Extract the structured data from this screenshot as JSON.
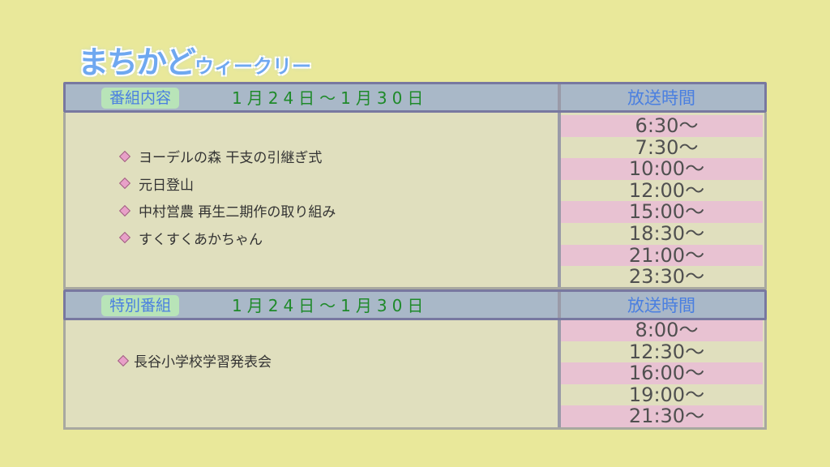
{
  "logo": {
    "main": "まちかど",
    "sub": "ウィークリー"
  },
  "sections": [
    {
      "label": "番組内容",
      "date": "1月24日～1月30日",
      "time_header": "放送時間",
      "items": [
        "ヨーデルの森 干支の引継ぎ式",
        "元日登山",
        "中村営農 再生二期作の取り組み",
        "すくすくあかちゃん"
      ],
      "times": [
        "6:30～",
        "7:30～",
        "10:00～",
        "12:00～",
        "15:00～",
        "18:30～",
        "21:00～",
        "23:30～"
      ]
    },
    {
      "label": "特別番組",
      "date": "1月24日～1月30日",
      "time_header": "放送時間",
      "items": [
        "長谷小学校学習発表会"
      ],
      "times": [
        "8:00～",
        "12:30～",
        "16:00～",
        "19:00～",
        "21:30～"
      ]
    }
  ],
  "colors": {
    "background": "#e9e89a",
    "header": "#a9b8c8",
    "stripe": "#e8c2d2",
    "label": "#b8e4b8",
    "date": "#1f8a2a"
  }
}
